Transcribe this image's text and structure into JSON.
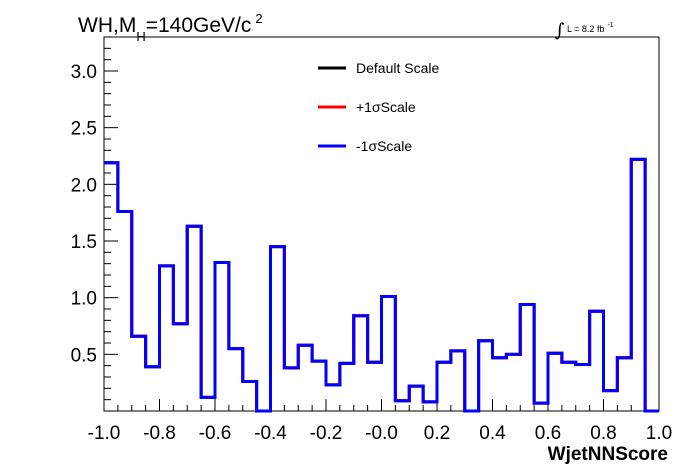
{
  "title": {
    "prefix": "WH,M",
    "subscript": "H",
    "suffix": "=140GeV/c",
    "superscript": "2"
  },
  "lumi": {
    "symbol": "∫",
    "text": "L = 8.2 fb",
    "superscript": "-1"
  },
  "chart_data": {
    "type": "line",
    "xlabel": "WjetNNScore",
    "ylabel": "",
    "xlim": [
      -1.0,
      1.0
    ],
    "ylim": [
      0.0,
      3.3
    ],
    "x_ticks": [
      "-1.0",
      "-0.8",
      "-0.6",
      "-0.4",
      "-0.2",
      "-0.0",
      "0.2",
      "0.4",
      "0.6",
      "0.8",
      "1.0"
    ],
    "y_ticks": [
      "0.5",
      "1.0",
      "1.5",
      "2.0",
      "2.5",
      "3.0"
    ],
    "bin_edges": [
      -1.0,
      -0.95,
      -0.9,
      -0.85,
      -0.8,
      -0.75,
      -0.7,
      -0.65,
      -0.6,
      -0.55,
      -0.5,
      -0.45,
      -0.4,
      -0.35,
      -0.3,
      -0.25,
      -0.2,
      -0.15,
      -0.1,
      -0.05,
      0.0,
      0.05,
      0.1,
      0.15,
      0.2,
      0.25,
      0.3,
      0.35,
      0.4,
      0.45,
      0.5,
      0.55,
      0.6,
      0.65,
      0.7,
      0.75,
      0.8,
      0.85,
      0.9,
      0.95,
      1.0
    ],
    "legend_position": "top-center",
    "series": [
      {
        "name": "Default Scale",
        "color": "#000000",
        "values": [
          2.19,
          1.76,
          0.66,
          0.39,
          1.28,
          0.77,
          1.63,
          0.12,
          1.31,
          0.55,
          0.26,
          0.0,
          1.45,
          0.38,
          0.58,
          0.44,
          0.23,
          0.42,
          0.84,
          0.43,
          1.01,
          0.09,
          0.22,
          0.08,
          0.43,
          0.53,
          0.0,
          0.62,
          0.47,
          0.5,
          0.94,
          0.07,
          0.51,
          0.43,
          0.41,
          0.88,
          0.18,
          0.47,
          2.22,
          0.0
        ]
      },
      {
        "name": "+1σScale",
        "color": "#ff0000",
        "values": [
          2.19,
          1.76,
          0.66,
          0.39,
          1.28,
          0.77,
          1.63,
          0.12,
          1.31,
          0.55,
          0.26,
          0.0,
          1.45,
          0.38,
          0.58,
          0.44,
          0.23,
          0.42,
          0.84,
          0.43,
          1.01,
          0.09,
          0.22,
          0.08,
          0.43,
          0.53,
          0.0,
          0.62,
          0.47,
          0.5,
          0.94,
          0.07,
          0.51,
          0.43,
          0.41,
          0.88,
          0.18,
          0.47,
          2.22,
          0.0
        ]
      },
      {
        "name": "-1σScale",
        "color": "#0000ff",
        "values": [
          2.19,
          1.76,
          0.66,
          0.39,
          1.28,
          0.77,
          1.63,
          0.12,
          1.31,
          0.55,
          0.26,
          0.0,
          1.45,
          0.38,
          0.58,
          0.44,
          0.23,
          0.42,
          0.84,
          0.43,
          1.01,
          0.09,
          0.22,
          0.08,
          0.43,
          0.53,
          0.0,
          0.62,
          0.47,
          0.5,
          0.94,
          0.07,
          0.51,
          0.43,
          0.41,
          0.88,
          0.18,
          0.47,
          2.22,
          0.0
        ]
      }
    ]
  }
}
